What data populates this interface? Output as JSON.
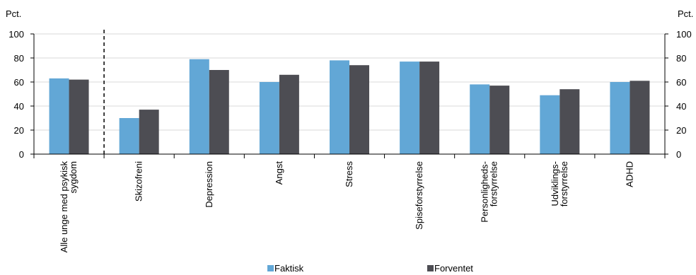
{
  "chart_data": {
    "type": "bar",
    "y_unit_left": "Pct.",
    "y_unit_right": "Pct.",
    "ylim": [
      0,
      100
    ],
    "yticks": [
      0,
      20,
      40,
      60,
      80,
      100
    ],
    "categories": [
      [
        "Alle unge med psykisk",
        "sygdom"
      ],
      [
        "Skizofreni"
      ],
      [
        "Depression"
      ],
      [
        "Angst"
      ],
      [
        "Stress"
      ],
      [
        "Spiseforstyrrelse"
      ],
      [
        "Personligheds-",
        "forstyrrelse"
      ],
      [
        "Udviklings-",
        "forstyrrelse"
      ],
      [
        "ADHD"
      ]
    ],
    "series": [
      {
        "name": "Faktisk",
        "color": "#62A7D6",
        "values": [
          63,
          30,
          79,
          60,
          78,
          77,
          58,
          49,
          60
        ]
      },
      {
        "name": "Forventet",
        "color": "#4D4D53",
        "values": [
          62,
          37,
          70,
          66,
          74,
          77,
          57,
          54,
          61
        ]
      }
    ],
    "separator_after_category": 0,
    "grid": true,
    "legend_position": "bottom"
  }
}
